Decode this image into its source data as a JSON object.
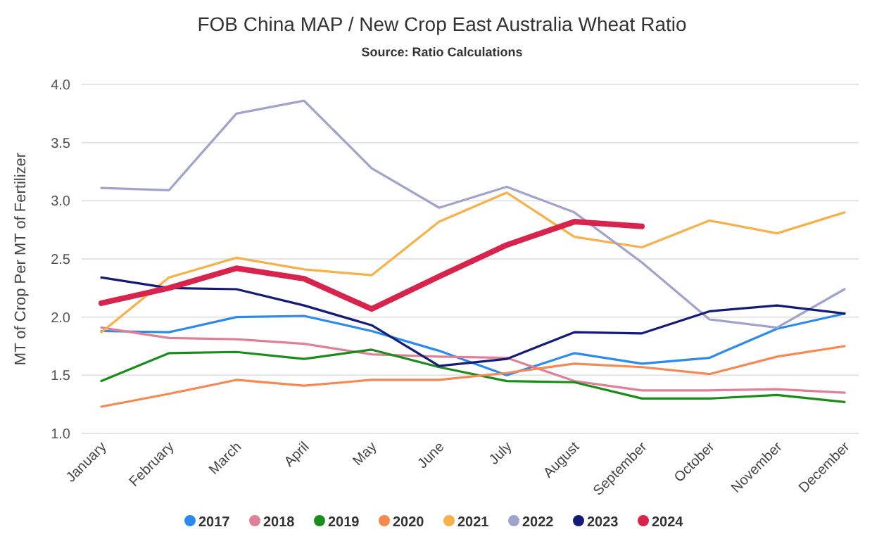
{
  "chart_data": {
    "type": "line",
    "title": "FOB China MAP / New Crop East Australia Wheat Ratio",
    "subtitle": "Source: Ratio Calculations",
    "ylabel": "MT of Crop Per MT of Fertilizer",
    "categories": [
      "January",
      "February",
      "March",
      "April",
      "May",
      "June",
      "July",
      "August",
      "September",
      "October",
      "November",
      "December"
    ],
    "ylim": [
      1,
      4
    ],
    "yticks": [
      {
        "value": 1,
        "label": "1.0"
      },
      {
        "value": 1.5,
        "label": "1.5"
      },
      {
        "value": 2,
        "label": "2.0"
      },
      {
        "value": 2.5,
        "label": "2.5"
      },
      {
        "value": 3,
        "label": "3.0"
      },
      {
        "value": 3.5,
        "label": "3.5"
      },
      {
        "value": 4,
        "label": "4.0"
      }
    ],
    "grid": "y",
    "legend": "bottom",
    "marker": "none",
    "line_style": "solid",
    "series": [
      {
        "name": "2017",
        "color": "#2a8af0",
        "values": [
          1.88,
          1.87,
          2.0,
          2.01,
          1.88,
          1.71,
          1.5,
          1.69,
          1.6,
          1.65,
          1.9,
          2.03
        ]
      },
      {
        "name": "2018",
        "color": "#e08098",
        "values": [
          1.91,
          1.82,
          1.81,
          1.77,
          1.68,
          1.66,
          1.65,
          1.45,
          1.37,
          1.37,
          1.38,
          1.35
        ]
      },
      {
        "name": "2019",
        "color": "#1a8c1a",
        "values": [
          1.45,
          1.69,
          1.7,
          1.64,
          1.72,
          1.57,
          1.45,
          1.44,
          1.3,
          1.3,
          1.33,
          1.27
        ]
      },
      {
        "name": "2020",
        "color": "#f88850",
        "values": [
          1.23,
          1.34,
          1.46,
          1.41,
          1.46,
          1.46,
          1.52,
          1.6,
          1.57,
          1.51,
          1.66,
          1.75
        ]
      },
      {
        "name": "2021",
        "color": "#f8b048",
        "values": [
          1.87,
          2.34,
          2.51,
          2.41,
          2.36,
          2.82,
          3.07,
          2.69,
          2.6,
          2.83,
          2.72,
          2.9
        ]
      },
      {
        "name": "2022",
        "color": "#a0a4cc",
        "values": [
          3.11,
          3.09,
          3.75,
          3.86,
          3.28,
          2.94,
          3.12,
          2.9,
          2.47,
          1.98,
          1.91,
          2.24
        ]
      },
      {
        "name": "2023",
        "color": "#141a78",
        "values": [
          2.34,
          2.25,
          2.24,
          2.1,
          1.93,
          1.58,
          1.64,
          1.87,
          1.86,
          2.05,
          2.1,
          2.03
        ]
      },
      {
        "name": "2024",
        "color": "#d8244c",
        "values": [
          2.12,
          2.25,
          2.42,
          2.33,
          2.07,
          2.35,
          2.62,
          2.82,
          2.78,
          null,
          null,
          null
        ]
      }
    ]
  }
}
